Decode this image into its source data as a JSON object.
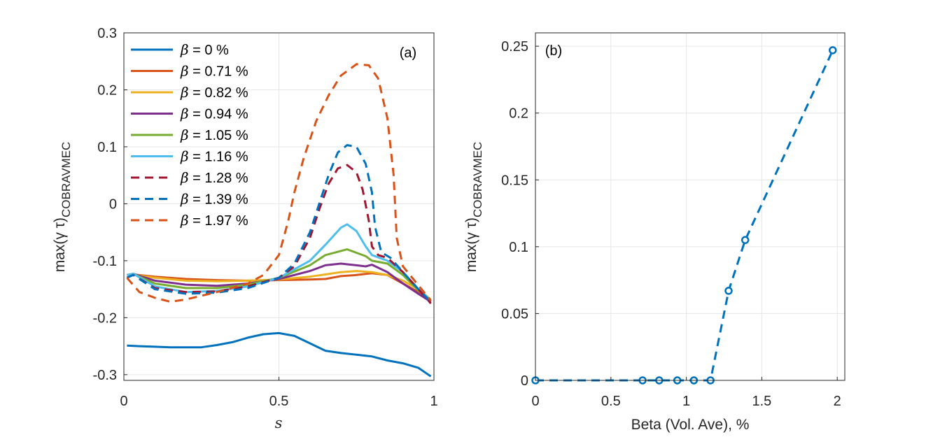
{
  "chart_data": [
    {
      "type": "line",
      "panel_label": "(a)",
      "xlabel": "s",
      "ylabel_main": "max(γ τ)",
      "ylabel_sub": "COBRAVMEC",
      "xlim": [
        0,
        1
      ],
      "ylim": [
        -0.31,
        0.3
      ],
      "xticks": [
        0,
        0.5,
        1
      ],
      "xtick_labels": [
        "0",
        "0.5",
        "1"
      ],
      "yticks": [
        -0.3,
        -0.2,
        -0.1,
        0,
        0.1,
        0.2,
        0.3
      ],
      "ytick_labels": [
        "-0.3",
        "-0.2",
        "-0.1",
        "0",
        "0.1",
        "0.2",
        "0.3"
      ],
      "grid": true,
      "legend_position": "top-left",
      "series": [
        {
          "name": "β = 0 %",
          "label_prefix": "β",
          "label_value": " = 0 %",
          "color": "#0072BD",
          "dash": "solid",
          "x": [
            0.01,
            0.05,
            0.1,
            0.15,
            0.2,
            0.25,
            0.3,
            0.35,
            0.4,
            0.45,
            0.5,
            0.55,
            0.6,
            0.65,
            0.7,
            0.75,
            0.8,
            0.85,
            0.9,
            0.95,
            0.99
          ],
          "y": [
            -0.249,
            -0.25,
            -0.251,
            -0.252,
            -0.252,
            -0.252,
            -0.248,
            -0.243,
            -0.235,
            -0.229,
            -0.227,
            -0.232,
            -0.245,
            -0.258,
            -0.262,
            -0.265,
            -0.268,
            -0.275,
            -0.28,
            -0.288,
            -0.303
          ]
        },
        {
          "name": "β = 0.71 %",
          "label_prefix": "β",
          "label_value": " = 0.71 %",
          "color": "#D95319",
          "dash": "solid",
          "x": [
            0.01,
            0.03,
            0.1,
            0.2,
            0.3,
            0.4,
            0.5,
            0.6,
            0.65,
            0.7,
            0.75,
            0.8,
            0.85,
            0.9,
            0.95,
            0.99
          ],
          "y": [
            -0.125,
            -0.124,
            -0.128,
            -0.132,
            -0.134,
            -0.135,
            -0.134,
            -0.133,
            -0.132,
            -0.127,
            -0.125,
            -0.122,
            -0.125,
            -0.14,
            -0.155,
            -0.172
          ]
        },
        {
          "name": "β = 0.82 %",
          "label_prefix": "β",
          "label_value": " = 0.82 %",
          "color": "#EDB120",
          "dash": "solid",
          "x": [
            0.01,
            0.03,
            0.1,
            0.2,
            0.3,
            0.4,
            0.5,
            0.6,
            0.65,
            0.7,
            0.75,
            0.8,
            0.85,
            0.9,
            0.95,
            0.99
          ],
          "y": [
            -0.125,
            -0.124,
            -0.13,
            -0.135,
            -0.136,
            -0.135,
            -0.133,
            -0.128,
            -0.124,
            -0.12,
            -0.118,
            -0.12,
            -0.125,
            -0.135,
            -0.15,
            -0.168
          ]
        },
        {
          "name": "β = 0.94 %",
          "label_prefix": "β",
          "label_value": " = 0.94 %",
          "color": "#7E2F8E",
          "dash": "solid",
          "x": [
            0.01,
            0.03,
            0.1,
            0.2,
            0.3,
            0.4,
            0.5,
            0.6,
            0.65,
            0.7,
            0.75,
            0.78,
            0.8,
            0.85,
            0.9,
            0.95,
            0.99
          ],
          "y": [
            -0.125,
            -0.123,
            -0.135,
            -0.142,
            -0.144,
            -0.14,
            -0.132,
            -0.118,
            -0.108,
            -0.105,
            -0.108,
            -0.11,
            -0.107,
            -0.12,
            -0.14,
            -0.158,
            -0.172
          ]
        },
        {
          "name": "β = 1.05 %",
          "label_prefix": "β",
          "label_value": " = 1.05 %",
          "color": "#77AC30",
          "dash": "solid",
          "x": [
            0.01,
            0.03,
            0.1,
            0.2,
            0.3,
            0.4,
            0.5,
            0.6,
            0.65,
            0.72,
            0.78,
            0.8,
            0.85,
            0.9,
            0.95,
            0.99
          ],
          "y": [
            -0.125,
            -0.123,
            -0.14,
            -0.148,
            -0.148,
            -0.142,
            -0.13,
            -0.108,
            -0.09,
            -0.08,
            -0.092,
            -0.1,
            -0.105,
            -0.125,
            -0.152,
            -0.17
          ]
        },
        {
          "name": "β = 1.16 %",
          "label_prefix": "β",
          "label_value": " = 1.16 %",
          "color": "#4DBEEE",
          "dash": "solid",
          "x": [
            0.01,
            0.03,
            0.1,
            0.2,
            0.3,
            0.4,
            0.5,
            0.6,
            0.65,
            0.7,
            0.72,
            0.75,
            0.78,
            0.8,
            0.85,
            0.9,
            0.95,
            0.99
          ],
          "y": [
            -0.125,
            -0.123,
            -0.145,
            -0.155,
            -0.153,
            -0.145,
            -0.13,
            -0.1,
            -0.072,
            -0.042,
            -0.036,
            -0.048,
            -0.075,
            -0.09,
            -0.1,
            -0.12,
            -0.15,
            -0.17
          ]
        },
        {
          "name": "β = 1.28 %",
          "label_prefix": "β",
          "label_value": " = 1.28 %",
          "color": "#A2142F",
          "dash": "dashed",
          "x": [
            0.01,
            0.03,
            0.1,
            0.2,
            0.3,
            0.4,
            0.5,
            0.55,
            0.6,
            0.63,
            0.66,
            0.69,
            0.72,
            0.75,
            0.77,
            0.79,
            0.8,
            0.82,
            0.85,
            0.9,
            0.95,
            0.99
          ],
          "y": [
            -0.13,
            -0.125,
            -0.148,
            -0.155,
            -0.154,
            -0.145,
            -0.13,
            -0.11,
            -0.06,
            -0.01,
            0.035,
            0.062,
            0.068,
            0.055,
            0.025,
            -0.03,
            -0.075,
            -0.09,
            -0.095,
            -0.12,
            -0.15,
            -0.175
          ]
        },
        {
          "name": "β = 1.39 %",
          "label_prefix": "β",
          "label_value": " = 1.39 %",
          "color": "#0072BD",
          "dash": "dashed",
          "x": [
            0.01,
            0.03,
            0.1,
            0.2,
            0.3,
            0.4,
            0.5,
            0.55,
            0.6,
            0.63,
            0.66,
            0.69,
            0.72,
            0.75,
            0.78,
            0.8,
            0.81,
            0.83,
            0.86,
            0.9,
            0.95,
            0.99
          ],
          "y": [
            -0.13,
            -0.125,
            -0.15,
            -0.158,
            -0.156,
            -0.148,
            -0.13,
            -0.105,
            -0.05,
            0.0,
            0.05,
            0.09,
            0.103,
            0.1,
            0.07,
            0.02,
            -0.04,
            -0.085,
            -0.095,
            -0.12,
            -0.15,
            -0.172
          ]
        },
        {
          "name": "β = 1.97 %",
          "label_prefix": "β",
          "label_value": " = 1.97 %",
          "color": "#D95319",
          "dash": "dashed",
          "x": [
            0.01,
            0.05,
            0.1,
            0.15,
            0.2,
            0.3,
            0.4,
            0.45,
            0.5,
            0.53,
            0.55,
            0.58,
            0.62,
            0.66,
            0.7,
            0.75,
            0.79,
            0.82,
            0.85,
            0.87,
            0.88,
            0.9,
            0.93,
            0.96,
            0.99
          ],
          "y": [
            -0.13,
            -0.155,
            -0.165,
            -0.172,
            -0.168,
            -0.155,
            -0.14,
            -0.125,
            -0.09,
            -0.03,
            0.02,
            0.08,
            0.145,
            0.19,
            0.225,
            0.245,
            0.243,
            0.22,
            0.15,
            0.05,
            -0.06,
            -0.11,
            -0.13,
            -0.15,
            -0.17
          ]
        }
      ]
    },
    {
      "type": "line",
      "panel_label": "(b)",
      "xlabel": "Beta (Vol. Ave), %",
      "ylabel_main": "max(γ τ)",
      "ylabel_sub": "COBRAVMEC",
      "xlim": [
        0,
        2.05
      ],
      "ylim": [
        0,
        0.26
      ],
      "xticks": [
        0,
        0.5,
        1,
        1.5,
        2
      ],
      "xtick_labels": [
        "0",
        "0.5",
        "1",
        "1.5",
        "2"
      ],
      "yticks": [
        0,
        0.05,
        0.1,
        0.15,
        0.2,
        0.25
      ],
      "ytick_labels": [
        "0",
        "0.05",
        "0.1",
        "0.15",
        "0.2",
        "0.25"
      ],
      "grid": true,
      "series": [
        {
          "color": "#0072BD",
          "dash": "dashed",
          "marker": "circle",
          "x": [
            0,
            0.71,
            0.82,
            0.94,
            1.05,
            1.16,
            1.28,
            1.39,
            1.97
          ],
          "y": [
            0,
            0,
            0,
            0,
            0,
            0,
            0.067,
            0.105,
            0.247
          ]
        }
      ]
    }
  ]
}
